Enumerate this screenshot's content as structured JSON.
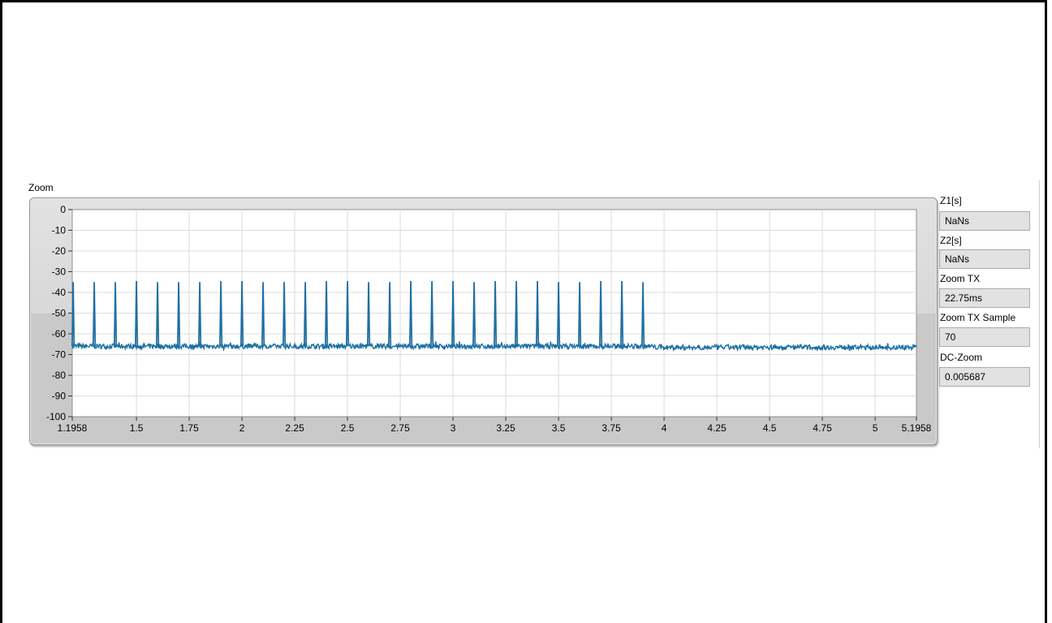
{
  "graph": {
    "caption": "Zoom"
  },
  "indicators": [
    {
      "label": "Z1[s]",
      "value": "NaNs"
    },
    {
      "label": "Z2[s]",
      "value": "NaNs"
    },
    {
      "label": "Zoom TX",
      "value": "22.75ms"
    },
    {
      "label": "Zoom TX Sample",
      "value": "70"
    },
    {
      "label": "DC-Zoom",
      "value": "0.005687"
    }
  ],
  "colors": {
    "trace": "#1f6fa3",
    "plot_bg": "#ffffff",
    "grid": "#dcdcdc",
    "frame": "#c9c9c9"
  },
  "chart_data": {
    "type": "line",
    "title": "Zoom",
    "xlabel": "",
    "ylabel": "",
    "xlim": [
      1.1958,
      5.1958
    ],
    "ylim": [
      -100,
      0
    ],
    "x_ticks": [
      1.1958,
      1.5,
      1.75,
      2,
      2.25,
      2.5,
      2.75,
      3,
      3.25,
      3.5,
      3.75,
      4,
      4.25,
      4.5,
      4.75,
      5,
      5.1958
    ],
    "x_tick_labels": [
      "1.1958",
      "1.5",
      "1.75",
      "2",
      "2.25",
      "2.5",
      "2.75",
      "3",
      "3.25",
      "3.5",
      "3.75",
      "4",
      "4.25",
      "4.5",
      "4.75",
      "5",
      "5.1958"
    ],
    "y_ticks": [
      0,
      -10,
      -20,
      -30,
      -40,
      -50,
      -60,
      -70,
      -80,
      -90,
      -100
    ],
    "y_tick_labels": [
      "0",
      "-10",
      "-20",
      "-30",
      "-40",
      "-50",
      "-60",
      "-70",
      "-80",
      "-90",
      "-100"
    ],
    "grid": true,
    "series": [
      {
        "baseline": -66,
        "baseline_after_bursts": -66.5,
        "pulses": [
          {
            "x": 1.2,
            "y": -35
          },
          {
            "x": 1.3,
            "y": -35
          },
          {
            "x": 1.4,
            "y": -35
          },
          {
            "x": 1.5,
            "y": -34.5
          },
          {
            "x": 1.6,
            "y": -35
          },
          {
            "x": 1.7,
            "y": -35
          },
          {
            "x": 1.8,
            "y": -35
          },
          {
            "x": 1.9,
            "y": -34.5
          },
          {
            "x": 2.0,
            "y": -34.5
          },
          {
            "x": 2.1,
            "y": -35
          },
          {
            "x": 2.2,
            "y": -35
          },
          {
            "x": 2.3,
            "y": -35
          },
          {
            "x": 2.4,
            "y": -34.5
          },
          {
            "x": 2.5,
            "y": -34.5
          },
          {
            "x": 2.6,
            "y": -35
          },
          {
            "x": 2.7,
            "y": -35
          },
          {
            "x": 2.8,
            "y": -34.5
          },
          {
            "x": 2.9,
            "y": -34.5
          },
          {
            "x": 3.0,
            "y": -34.5
          },
          {
            "x": 3.1,
            "y": -35
          },
          {
            "x": 3.2,
            "y": -34.5
          },
          {
            "x": 3.3,
            "y": -34.5
          },
          {
            "x": 3.4,
            "y": -34.5
          },
          {
            "x": 3.5,
            "y": -35
          },
          {
            "x": 3.6,
            "y": -35
          },
          {
            "x": 3.7,
            "y": -34.5
          },
          {
            "x": 3.8,
            "y": -34.5
          },
          {
            "x": 3.9,
            "y": -35
          }
        ]
      }
    ]
  }
}
